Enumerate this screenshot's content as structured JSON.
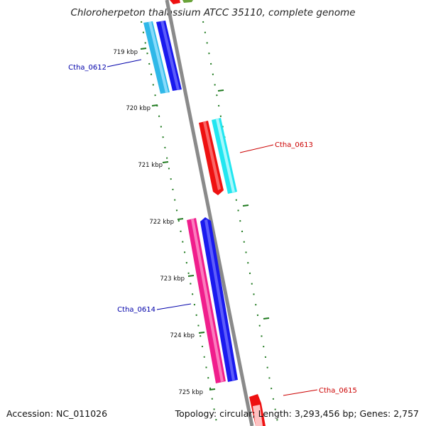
{
  "title": "Chloroherpeton thalassium ATCC 35110, complete genome",
  "accession_text": "Accession: NC_011026",
  "topology_text": "Topology: circular; Length: 3,293,456 bp; Genes: 2,757",
  "colors": {
    "backbone": "#8a8a8a",
    "tick": "#1f7a1f",
    "label_forward": "#cc0000",
    "label_reverse": "#0000aa",
    "cyan": "#22e6f0",
    "blue": "#1a1aee",
    "red": "#ee1111",
    "pink": "#f01e8c",
    "skyblue": "#2fb8e8"
  },
  "ticks": [
    {
      "label": "719 kbp"
    },
    {
      "label": "720 kbp"
    },
    {
      "label": "721 kbp"
    },
    {
      "label": "722 kbp"
    },
    {
      "label": "723 kbp"
    },
    {
      "label": "724 kbp"
    },
    {
      "label": "725 kbp"
    }
  ],
  "gene_labels": [
    {
      "label": "Ctha_0612",
      "strand": "reverse"
    },
    {
      "label": "Ctha_0613",
      "strand": "forward"
    },
    {
      "label": "Ctha_0614",
      "strand": "reverse"
    },
    {
      "label": "Ctha_0615",
      "strand": "forward"
    }
  ]
}
